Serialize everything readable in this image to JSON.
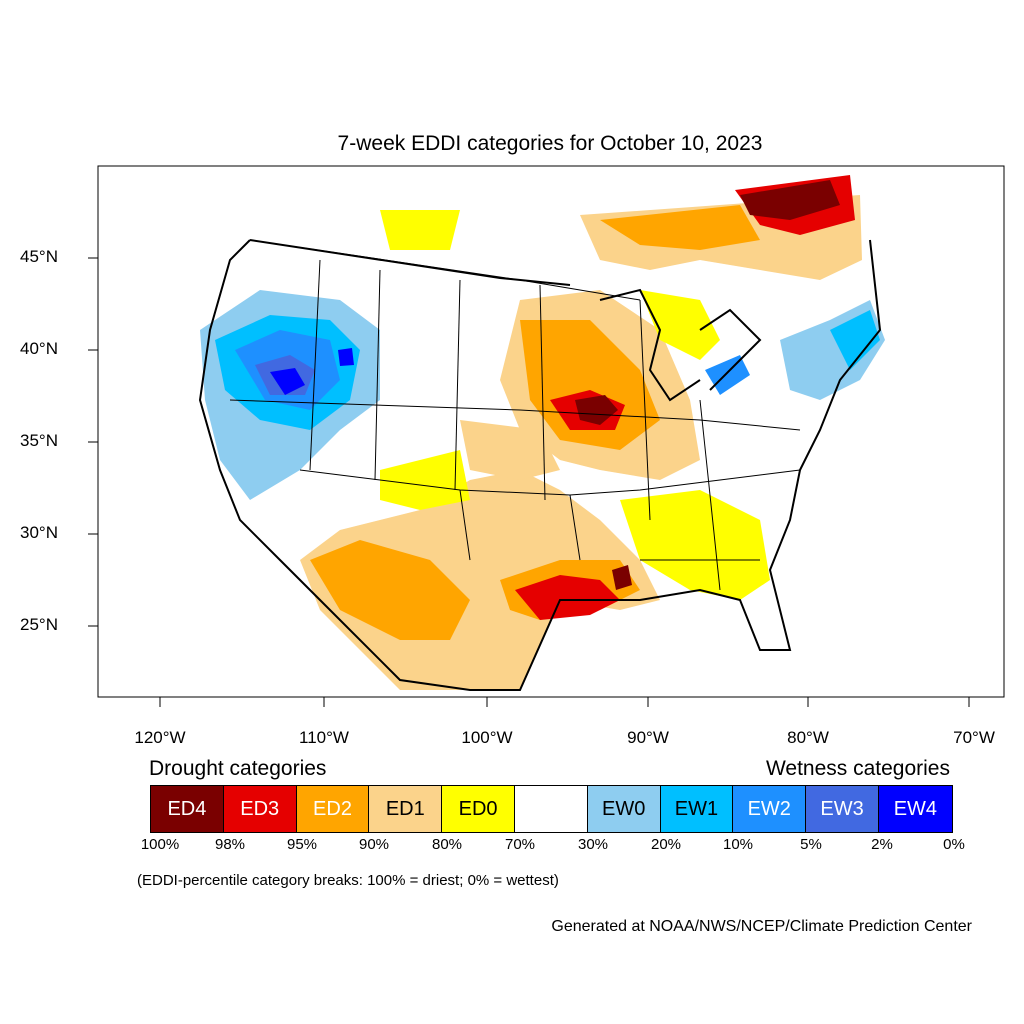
{
  "title": "7-week EDDI categories for October 10, 2023",
  "axes": {
    "lat_ticks": [
      "45°N",
      "40°N",
      "35°N",
      "30°N",
      "25°N"
    ],
    "lon_ticks": [
      "120°W",
      "110°W",
      "100°W",
      "90°W",
      "80°W",
      "70°W"
    ]
  },
  "legend": {
    "drought_title": "Drought categories",
    "wetness_title": "Wetness categories",
    "categories": [
      {
        "label": "ED4",
        "color": "#7a0000",
        "text_color": "#ffffff"
      },
      {
        "label": "ED3",
        "color": "#e50000",
        "text_color": "#ffffff"
      },
      {
        "label": "ED2",
        "color": "#ffa500",
        "text_color": "#ffffff"
      },
      {
        "label": "ED1",
        "color": "#fbd38b",
        "text_color": "#000000"
      },
      {
        "label": "ED0",
        "color": "#ffff00",
        "text_color": "#000000"
      },
      {
        "label": "",
        "color": "#ffffff",
        "text_color": "#000000"
      },
      {
        "label": "EW0",
        "color": "#8ecdf0",
        "text_color": "#000000"
      },
      {
        "label": "EW1",
        "color": "#00bfff",
        "text_color": "#000000"
      },
      {
        "label": "EW2",
        "color": "#1e90ff",
        "text_color": "#ffffff"
      },
      {
        "label": "EW3",
        "color": "#4169e1",
        "text_color": "#ffffff"
      },
      {
        "label": "EW4",
        "color": "#0000ff",
        "text_color": "#ffffff"
      }
    ],
    "breaks": [
      "100%",
      "98%",
      "95%",
      "90%",
      "80%",
      "70%",
      "30%",
      "20%",
      "10%",
      "5%",
      "2%",
      "0%"
    ]
  },
  "note": "(EDDI-percentile category breaks: 100% = driest; 0% = wettest)",
  "credit": "Generated at NOAA/NWS/NCEP/Climate Prediction Center"
}
